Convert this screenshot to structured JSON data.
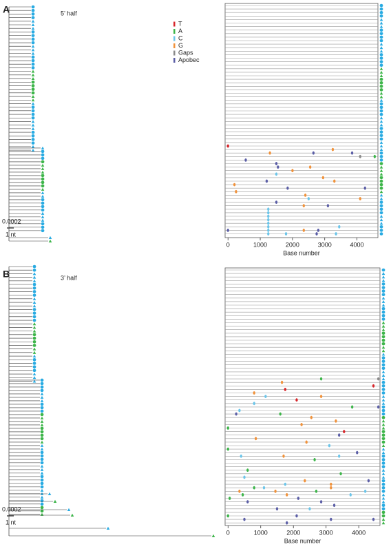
{
  "chart_data": [
    {
      "type": "highlighter",
      "panel_label": "A",
      "title": "5’ half",
      "scale_label": "0.0002",
      "scale_sub": "1 nt",
      "xlabel": "Base number",
      "xlim": [
        -90,
        4650
      ],
      "xticks": [
        0,
        1000,
        2000,
        3000,
        4000
      ],
      "sequences": 66,
      "legend": [
        {
          "name": "T",
          "color": "#d7262b"
        },
        {
          "name": "A",
          "color": "#3db54a"
        },
        {
          "name": "C",
          "color": "#6cc5e9"
        },
        {
          "name": "G",
          "color": "#f0923b"
        },
        {
          "name": "Gaps",
          "color": "#8a8a8a"
        },
        {
          "name": "Apobec",
          "color": "#5b5ea6"
        }
      ],
      "mutations": {
        "position": [
          0,
          1300,
          2650,
          3250,
          3850,
          4100,
          4550,
          550,
          1500,
          1550,
          2000,
          1500,
          2550,
          1200,
          2950,
          3300,
          200,
          1850,
          4250,
          250,
          2400,
          2500,
          4100,
          1500,
          2350,
          3100,
          1250,
          1250,
          1250,
          1250,
          1250,
          1250,
          1250,
          1250,
          3450,
          2350,
          2800,
          2750,
          0,
          1800,
          3350
        ],
        "row": [
          40,
          42,
          42,
          41,
          42,
          43,
          43,
          44,
          45,
          46,
          47,
          48,
          46,
          50,
          49,
          50,
          51,
          52,
          52,
          53,
          54,
          55,
          55,
          56,
          57,
          57,
          58,
          59,
          60,
          61,
          62,
          63,
          64,
          65,
          63,
          64,
          64,
          65,
          64,
          65,
          65
        ],
        "type": [
          "T",
          "G",
          "Apobec",
          "G",
          "Apobec",
          "Gaps",
          "A",
          "Apobec",
          "Apobec",
          "Apobec",
          "G",
          "C",
          "G",
          "Apobec",
          "G",
          "G",
          "G",
          "Apobec",
          "Apobec",
          "G",
          "G",
          "C",
          "G",
          "Apobec",
          "G",
          "Apobec",
          "C",
          "C",
          "C",
          "C",
          "C",
          "C",
          "C",
          "C",
          "C",
          "G",
          "Apobec",
          "Apobec",
          "Apobec",
          "C",
          "C"
        ]
      }
    },
    {
      "type": "highlighter",
      "panel_label": "B",
      "title": "3’ half",
      "scale_label": "0.0002",
      "scale_sub": "1 nt",
      "xlabel": "Base number",
      "xlim": [
        -90,
        4650
      ],
      "xticks": [
        0,
        1000,
        2000,
        3000,
        4000
      ],
      "sequences": 73,
      "mutations": {
        "position": [
          1650,
          2850,
          4600,
          4450,
          1750,
          800,
          1150,
          2100,
          2850,
          4600,
          3800,
          800,
          350,
          250,
          1600,
          2550,
          2250,
          3300,
          0,
          3550,
          850,
          3400,
          3100,
          2400,
          3950,
          3400,
          0,
          2650,
          400,
          1700,
          600,
          500,
          3450,
          2350,
          4300,
          3150,
          1750,
          3150,
          350,
          1450,
          800,
          1100,
          2700,
          1800,
          4200,
          450,
          3750,
          2150,
          50,
          600,
          2850,
          3250,
          1500,
          2500,
          0,
          2100,
          3150,
          4450,
          1800,
          500
        ],
        "row": [
          32,
          31,
          31,
          33,
          34,
          35,
          36,
          37,
          36,
          39,
          39,
          38,
          40,
          41,
          41,
          42,
          44,
          43,
          45,
          46,
          48,
          47,
          50,
          49,
          52,
          53,
          51,
          54,
          53,
          53,
          57,
          59,
          58,
          60,
          60,
          61,
          61,
          62,
          63,
          63,
          62,
          62,
          63,
          64,
          63,
          64,
          64,
          65,
          65,
          66,
          66,
          67,
          68,
          68,
          70,
          70,
          71,
          71,
          72,
          71
        ],
        "type": [
          "G",
          "A",
          "Gaps",
          "T",
          "T",
          "G",
          "C",
          "T",
          "G",
          "Apobec",
          "A",
          "C",
          "C",
          "Apobec",
          "A",
          "G",
          "G",
          "G",
          "A",
          "T",
          "G",
          "Apobec",
          "C",
          "G",
          "Apobec",
          "C",
          "A",
          "A",
          "C",
          "G",
          "A",
          "C",
          "A",
          "G",
          "Apobec",
          "G",
          "C",
          "G",
          "G",
          "G",
          "A",
          "C",
          "A",
          "G",
          "C",
          "A",
          "C",
          "Apobec",
          "A",
          "Apobec",
          "Apobec",
          "Apobec",
          "Apobec",
          "C",
          "A",
          "Apobec",
          "Apobec",
          "Apobec",
          "Apobec",
          "Apobec"
        ]
      }
    }
  ]
}
